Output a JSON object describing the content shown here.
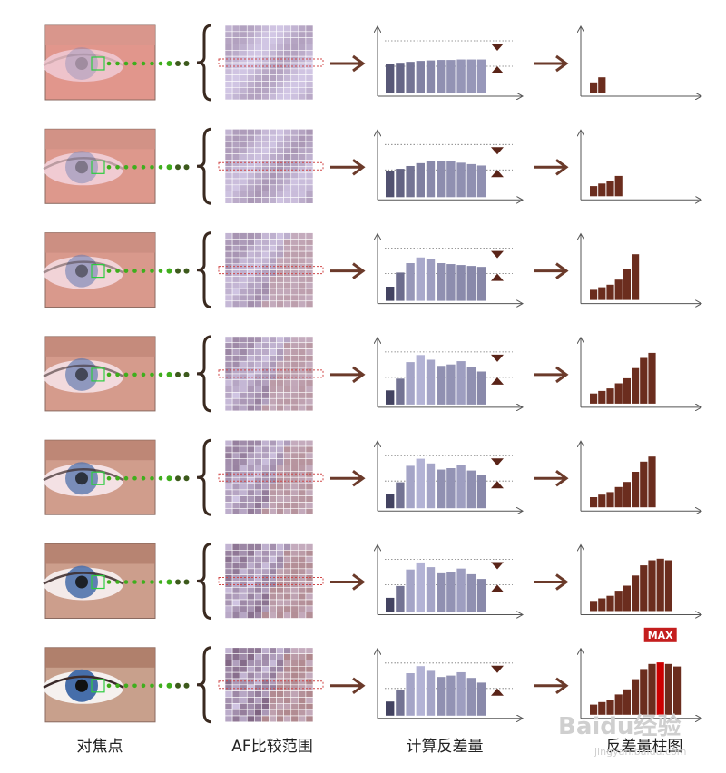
{
  "labels": {
    "focus_point": "对焦点",
    "af_region": "AF比较范围",
    "compute_contrast": "计算反差量",
    "contrast_histogram": "反差量柱图"
  },
  "max_label": "MAX",
  "watermark": {
    "brand": "Baidu经验",
    "url": "jingyan.baidu.com"
  },
  "colors": {
    "arrow": "#6b3a2a",
    "dots": "#3fae1d",
    "contrast_bar": "#6b2d1e",
    "max_bar": "#cc0000",
    "max_badge": "#c41e1e",
    "axis": "#555555",
    "marker": "#5a2418"
  },
  "steps": [
    {
      "bars": [
        0.62,
        0.65,
        0.67,
        0.69,
        0.7,
        0.71,
        0.71,
        0.72,
        0.72,
        0.72
      ],
      "tones": [
        0.2,
        0.3,
        0.4,
        0.5,
        0.55,
        0.6,
        0.62,
        0.64,
        0.65,
        0.66
      ],
      "histogram": [
        2,
        3
      ]
    },
    {
      "bars": [
        0.55,
        0.6,
        0.66,
        0.72,
        0.76,
        0.77,
        0.76,
        0.73,
        0.7,
        0.67
      ],
      "tones": [
        0.15,
        0.28,
        0.4,
        0.48,
        0.55,
        0.58,
        0.6,
        0.6,
        0.6,
        0.6
      ],
      "histogram": [
        2,
        2.5,
        3,
        4
      ]
    },
    {
      "bars": [
        0.3,
        0.6,
        0.8,
        0.92,
        0.88,
        0.8,
        0.78,
        0.76,
        0.74,
        0.72
      ],
      "tones": [
        0.05,
        0.35,
        0.65,
        0.78,
        0.7,
        0.6,
        0.58,
        0.56,
        0.55,
        0.54
      ],
      "histogram": [
        2,
        2.5,
        3,
        4,
        6,
        9
      ]
    },
    {
      "bars": [
        0.3,
        0.55,
        0.9,
        1.05,
        0.95,
        0.82,
        0.85,
        0.92,
        0.8,
        0.7
      ],
      "tones": [
        0.05,
        0.4,
        0.75,
        0.85,
        0.75,
        0.6,
        0.62,
        0.7,
        0.6,
        0.55
      ],
      "histogram": [
        2,
        2.5,
        3,
        4,
        5,
        7,
        9,
        10
      ]
    },
    {
      "bars": [
        0.3,
        0.55,
        0.9,
        1.05,
        0.95,
        0.82,
        0.85,
        0.92,
        0.8,
        0.7
      ],
      "tones": [
        0.05,
        0.4,
        0.75,
        0.85,
        0.75,
        0.6,
        0.62,
        0.7,
        0.6,
        0.55
      ],
      "histogram": [
        2,
        2.5,
        3,
        4,
        5,
        7,
        9,
        10
      ]
    },
    {
      "bars": [
        0.3,
        0.55,
        0.9,
        1.05,
        0.95,
        0.82,
        0.85,
        0.92,
        0.8,
        0.7
      ],
      "tones": [
        0.05,
        0.4,
        0.75,
        0.85,
        0.75,
        0.6,
        0.62,
        0.7,
        0.6,
        0.55
      ],
      "histogram": [
        2,
        2.5,
        3,
        4,
        5,
        7,
        9,
        10,
        10.3,
        10
      ]
    },
    {
      "bars": [
        0.3,
        0.55,
        0.9,
        1.05,
        0.95,
        0.82,
        0.85,
        0.92,
        0.8,
        0.7
      ],
      "tones": [
        0.05,
        0.4,
        0.75,
        0.85,
        0.75,
        0.6,
        0.62,
        0.7,
        0.6,
        0.55
      ],
      "histogram": [
        2,
        2.5,
        3,
        4,
        5,
        7,
        9,
        10,
        10.3,
        10,
        9.5
      ],
      "max_index": 8
    }
  ]
}
